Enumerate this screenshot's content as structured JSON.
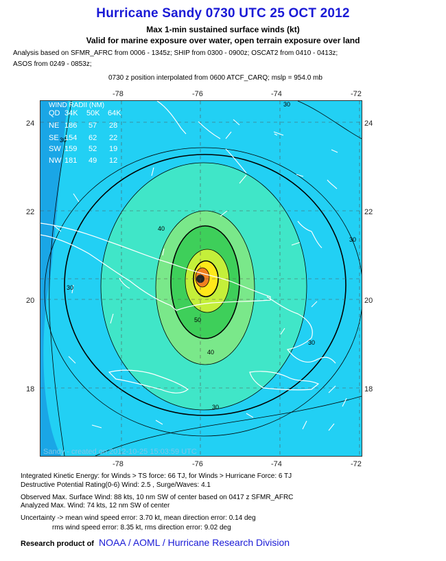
{
  "header": {
    "title": "Hurricane Sandy 0730 UTC 25 OCT 2012",
    "subtitle1": "Max 1-min sustained surface winds (kt)",
    "subtitle2": "Valid for marine exposure over water, open terrain exposure over land",
    "analysis_line1": "Analysis based on SFMR_AFRC from 0006 - 1345z; SHIP from 0300 - 0900z; OSCAT2 from 0410 - 0413z;",
    "analysis_line2": "ASOS from 0249 - 0853z;",
    "position_line": "0730 z position interpolated from 0600 ATCF_CARQ; mslp = 954.0 mb"
  },
  "axes": {
    "lon_ticks": [
      "-78",
      "-76",
      "-74",
      "-72"
    ],
    "lat_ticks": [
      "24",
      "22",
      "20",
      "18"
    ]
  },
  "wind_radii": {
    "title": "WIND RADII (NM)",
    "header": [
      "QD",
      "34K",
      "50K",
      "64K"
    ],
    "rows": [
      [
        "NE",
        "186",
        "57",
        "28"
      ],
      [
        "SE",
        "154",
        "62",
        "22"
      ],
      [
        "SW",
        "159",
        "52",
        "19"
      ],
      [
        "NW",
        "181",
        "49",
        "12"
      ]
    ]
  },
  "contour_labels": [
    "30",
    "40",
    "50",
    "30",
    "30",
    "30",
    "30",
    "40",
    "30"
  ],
  "credit": "Sandy - created on 2012-10-25 15:03:59 UTC",
  "footer": {
    "ike": "Integrated Kinetic Energy: for Winds > TS force: 66 TJ, for Winds > Hurricane Force: 6 TJ",
    "destructive": "Destructive Potential Rating(0-6)  Wind: 2.5 , Surge/Waves: 4.1",
    "observed": "Observed Max. Surface Wind: 88 kts, 10 nm SW of center based on 0417 z SFMR_AFRC",
    "analyzed": "Analyzed Max. Wind: 74 kts, 12 nm  SW of center",
    "uncertainty": "Uncertainty -> mean wind speed error: 3.70 kt, mean direction error: 0.14 deg",
    "rms": "rms wind speed error: 8.35 kt, rms direction error: 9.02 deg",
    "research_label": "Research product of",
    "research_org": "NOAA  /  AOML  /  Hurricane Research Division"
  },
  "colors": {
    "title": "#1a1ad6",
    "wind_20_30": "#1aa6e6",
    "wind_30_40": "#22d0f4",
    "wind_40_50": "#40e6c8",
    "wind_50_55": "#7ae88a",
    "wind_55_60": "#3ecf5a",
    "wind_60_65": "#c4ef3a",
    "wind_65_70": "#ffe81a",
    "wind_70_plus": "#f08020"
  }
}
